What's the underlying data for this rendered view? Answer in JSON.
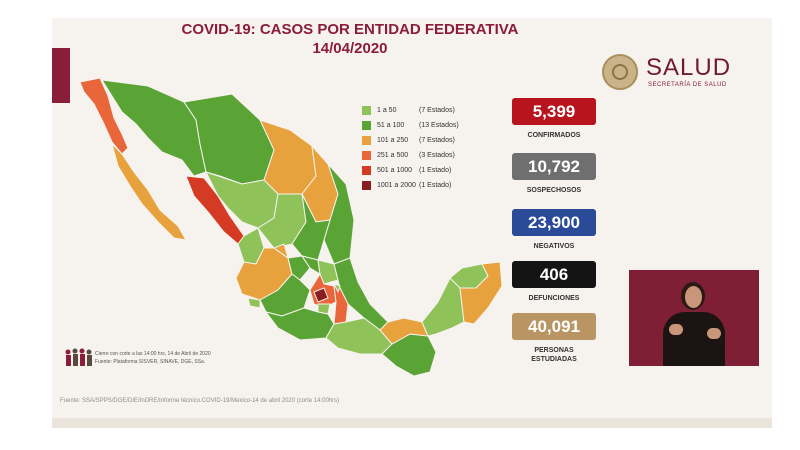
{
  "title_line1": "COVID-19: CASOS POR ENTIDAD FEDERATIVA",
  "title_line2": "14/04/2020",
  "logo": {
    "brand": "SALUD",
    "subtitle": "SECRETARÍA DE SALUD"
  },
  "colors": {
    "title": "#8a1d3a",
    "range_1_50": "#8fc258",
    "range_51_100": "#5aa436",
    "range_101_250": "#e8a23d",
    "range_251_500": "#e8663a",
    "range_501_1000": "#d43a24",
    "range_1001_2000": "#8a1d20"
  },
  "legend": [
    {
      "range": "1 a 50",
      "count": "(7 Estados)",
      "color": "#8fc258"
    },
    {
      "range": "51 a 100",
      "count": "(13 Estados)",
      "color": "#5aa436"
    },
    {
      "range": "101 a 250",
      "count": "(7 Estados)",
      "color": "#e8a23d"
    },
    {
      "range": "251 a 500",
      "count": "(3 Estados)",
      "color": "#e8663a"
    },
    {
      "range": "501 a 1000",
      "count": "(1 Estado)",
      "color": "#d43a24"
    },
    {
      "range": "1001 a 2000",
      "count": "(1 Estado)",
      "color": "#8a1d20"
    }
  ],
  "stats": [
    {
      "value": "5,399",
      "label": "CONFIRMADOS",
      "color": "#b8141e"
    },
    {
      "value": "10,792",
      "label": "SOSPECHOSOS",
      "color": "#6f6f6f"
    },
    {
      "value": "23,900",
      "label": "NEGATIVOS",
      "color": "#2b4a97"
    },
    {
      "value": "406",
      "label": "DEFUNCIONES",
      "color": "#141414"
    },
    {
      "value": "40,091",
      "label": "PERSONAS ESTUDIADAS",
      "color": "#b89563"
    }
  ],
  "footnote_line1": "Cierre con corte a las 14:00 hrs, 14 de Abril de 2020",
  "footnote_line2": "Fuente: Plataforma SISVER, SINAVE, DGE, SSa.",
  "source": "Fuente: SSA/SPPS/DGE/DIE/InDRE/Informe técnico.COVID-19/Mexico-14 de abril 2020 (corte 14:00hrs)",
  "icons": {
    "logo": "coat-of-arms-seal-icon",
    "people": "people-group-icon"
  }
}
